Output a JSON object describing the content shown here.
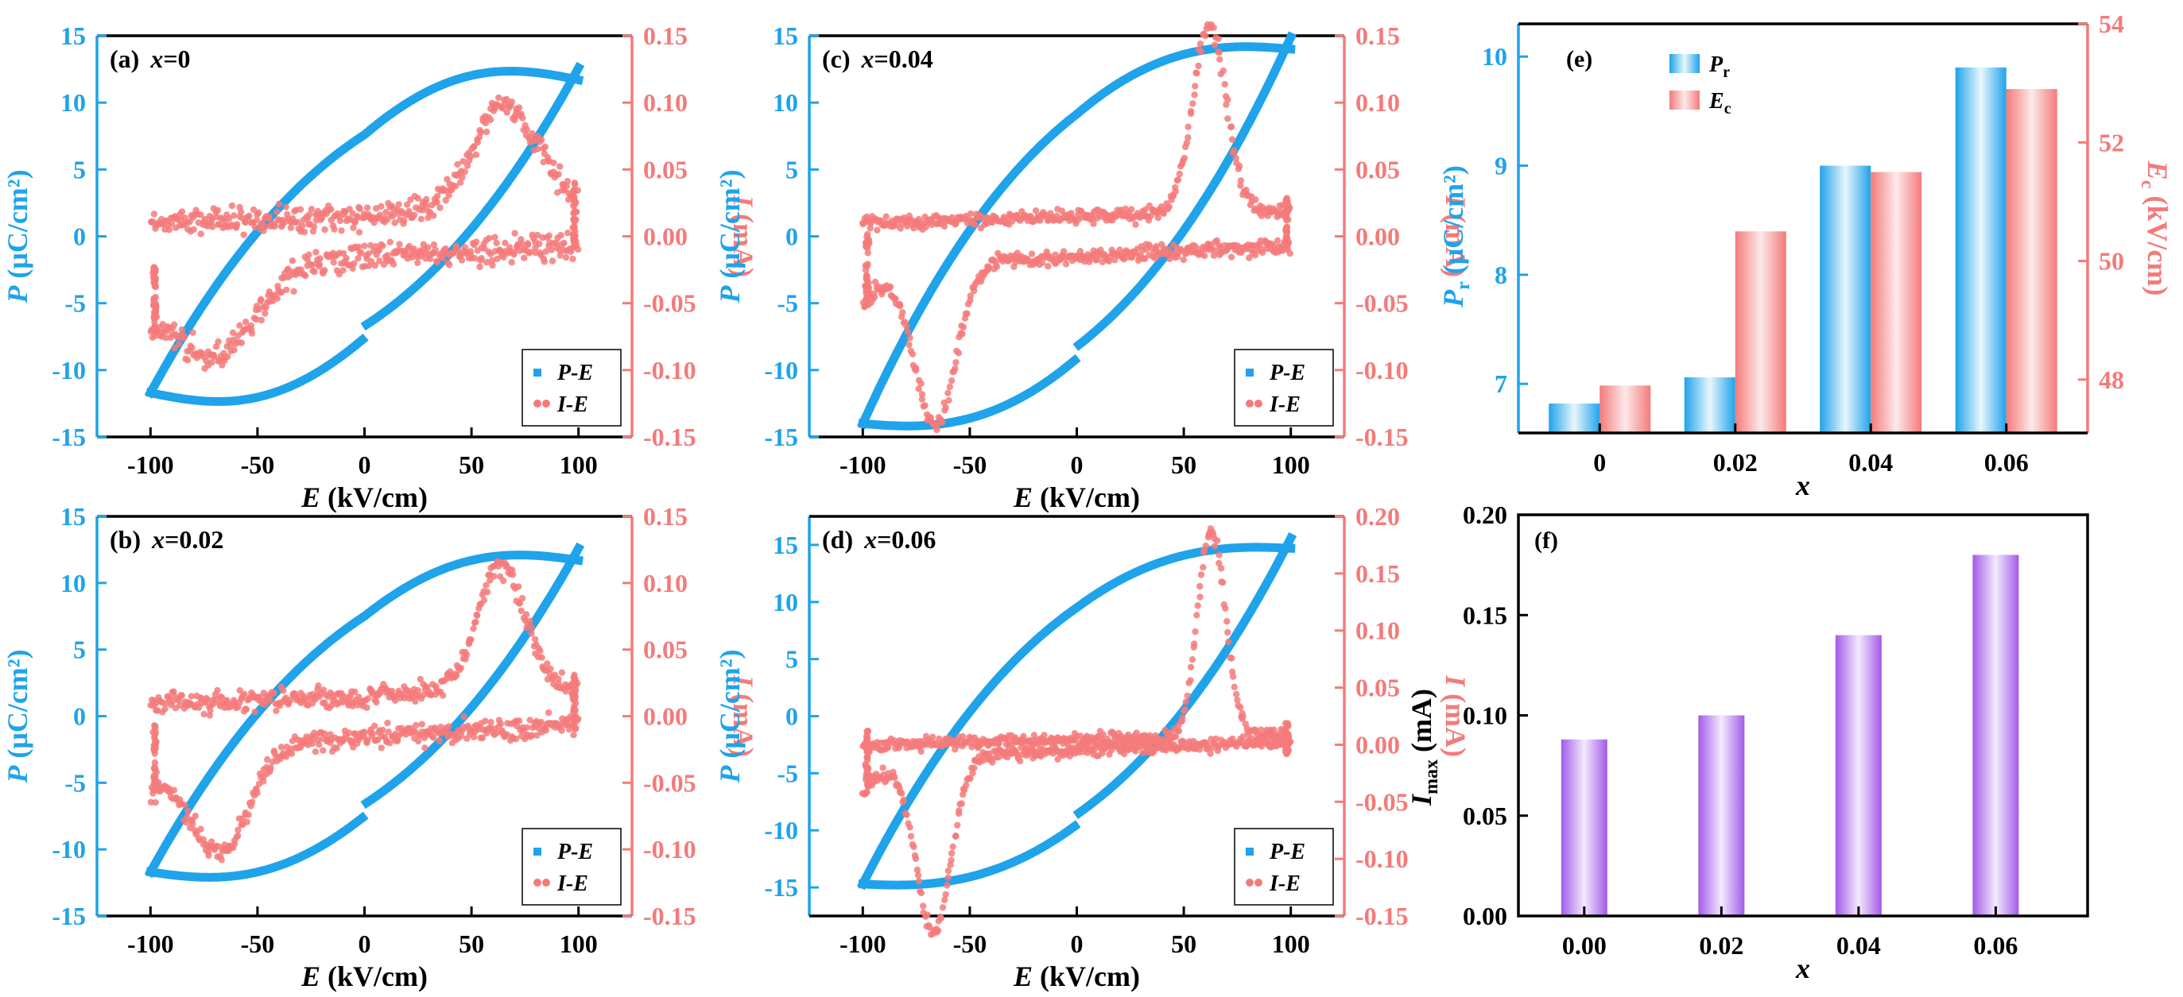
{
  "colors": {
    "blue": "#1fa3ea",
    "red": "#f47a7a",
    "purple": "#a25be8",
    "black": "#000000"
  },
  "chart_data": [
    {
      "id": "a",
      "type": "scatter",
      "panel_label": "(a)",
      "title_var": "x",
      "title_val": "=0",
      "xlabel_main": "E",
      "xlabel_unit": " (kV/cm)",
      "ylabel_left_main": "P",
      "ylabel_left_unit": " (μC/cm²)",
      "ylabel_right_main": "I",
      "ylabel_right_unit": " (mA)",
      "xlim": [
        -125,
        125
      ],
      "xticks": [
        -100,
        -50,
        0,
        50,
        100
      ],
      "y_left_lim": [
        -15,
        15
      ],
      "y_left_ticks": [
        -15,
        -10,
        -5,
        0,
        5,
        10,
        15
      ],
      "y_right_lim": [
        -0.15,
        0.15
      ],
      "y_right_ticks": [
        -0.15,
        -0.1,
        -0.05,
        0.0,
        0.05,
        0.1,
        0.15
      ],
      "y_right_tick_labels": [
        "-0.15",
        "-0.10",
        "-0.05",
        "0.00",
        "0.05",
        "0.10",
        "0.15"
      ],
      "legend": [
        "P-E",
        "I-E"
      ],
      "series": [
        {
          "name": "P-E",
          "Ps": 11.7,
          "Pr": 6.8,
          "Ec": 48,
          "wave": 3.5
        },
        {
          "name": "I-E",
          "Ipeak": 0.08,
          "peak_E": 66,
          "width": 22,
          "base": 0.01
        }
      ]
    },
    {
      "id": "b",
      "type": "scatter",
      "panel_label": "(b)",
      "title_var": "x",
      "title_val": "=0.02",
      "xlabel_main": "E",
      "xlabel_unit": " (kV/cm)",
      "ylabel_left_main": "P",
      "ylabel_left_unit": " (μC/cm²)",
      "ylabel_right_main": "I",
      "ylabel_right_unit": " (mA)",
      "xlim": [
        -125,
        125
      ],
      "xticks": [
        -100,
        -50,
        0,
        50,
        100
      ],
      "y_left_lim": [
        -15,
        15
      ],
      "y_left_ticks": [
        -15,
        -10,
        -5,
        0,
        5,
        10,
        15
      ],
      "y_right_lim": [
        -0.15,
        0.15
      ],
      "y_right_ticks": [
        -0.15,
        -0.1,
        -0.05,
        0.0,
        0.05,
        0.1,
        0.15
      ],
      "y_right_tick_labels": [
        "-0.15",
        "-0.10",
        "-0.05",
        "0.00",
        "0.05",
        "0.10",
        "0.15"
      ],
      "legend": [
        "P-E",
        "I-E"
      ],
      "series": [
        {
          "name": "P-E",
          "Ps": 11.7,
          "Pr": 7.06,
          "Ec": 50.5,
          "wave": 2.5
        },
        {
          "name": "I-E",
          "Ipeak": 0.095,
          "peak_E": 64,
          "width": 16,
          "base": 0.01
        }
      ]
    },
    {
      "id": "c",
      "type": "scatter",
      "panel_label": "(c)",
      "title_var": "x",
      "title_val": "=0.04",
      "xlabel_main": "E",
      "xlabel_unit": " (kV/cm)",
      "ylabel_left_main": "P",
      "ylabel_left_unit": " (μC/cm²)",
      "ylabel_right_main": "I",
      "ylabel_right_unit": " (mA)",
      "xlim": [
        -125,
        125
      ],
      "xticks": [
        -100,
        -50,
        0,
        50,
        100
      ],
      "y_left_lim": [
        -15,
        15
      ],
      "y_left_ticks": [
        -15,
        -10,
        -5,
        0,
        5,
        10,
        15
      ],
      "y_right_lim": [
        -0.15,
        0.15
      ],
      "y_right_ticks": [
        -0.15,
        -0.1,
        -0.05,
        0.0,
        0.05,
        0.1,
        0.15
      ],
      "y_right_tick_labels": [
        "-0.15",
        "-0.10",
        "-0.05",
        "0.00",
        "0.05",
        "0.10",
        "0.15"
      ],
      "legend": [
        "P-E",
        "I-E"
      ],
      "series": [
        {
          "name": "P-E",
          "Ps": 14.0,
          "Pr": 9.0,
          "Ec": 51.5,
          "wave": 1.5
        },
        {
          "name": "I-E",
          "Ipeak": 0.14,
          "peak_E": 62,
          "width": 11,
          "base": 0.01
        }
      ]
    },
    {
      "id": "d",
      "type": "scatter",
      "panel_label": "(d)",
      "title_var": "x",
      "title_val": "=0.06",
      "xlabel_main": "E",
      "xlabel_unit": " (kV/cm)",
      "ylabel_left_main": "P",
      "ylabel_left_unit": " (μC/cm²)",
      "ylabel_right_main": "I",
      "ylabel_right_unit": " (mA)",
      "xlim": [
        -125,
        125
      ],
      "xticks": [
        -100,
        -50,
        0,
        50,
        100
      ],
      "y_left_lim": [
        -17.5,
        17.5
      ],
      "y_left_ticks": [
        -15,
        -10,
        -5,
        0,
        5,
        10,
        15
      ],
      "y_right_lim": [
        -0.15,
        0.2
      ],
      "y_right_ticks": [
        -0.15,
        -0.1,
        -0.05,
        0.0,
        0.05,
        0.1,
        0.15,
        0.2
      ],
      "y_right_tick_labels": [
        "-0.15",
        "-0.10",
        "-0.05",
        "0.00",
        "0.05",
        "0.10",
        "0.15",
        "0.20"
      ],
      "legend": [
        "P-E",
        "I-E"
      ],
      "series": [
        {
          "name": "P-E",
          "Ps": 14.7,
          "Pr": 9.9,
          "Ec": 53,
          "wave": 1.0
        },
        {
          "name": "I-E",
          "Ipeak": 0.18,
          "peak_E": 63,
          "width": 9,
          "base": 0.0
        }
      ]
    },
    {
      "id": "e",
      "type": "bar",
      "panel_label": "(e)",
      "categories": [
        "0",
        "0.02",
        "0.04",
        "0.06"
      ],
      "xlabel": "x",
      "ylabel_left_main": "P",
      "ylabel_left_sub": "r",
      "ylabel_left_unit": " (μC/cm²)",
      "ylabel_right_main": "E",
      "ylabel_right_sub": "c",
      "ylabel_right_unit": " (kV/cm)",
      "y_left_lim": [
        6.55,
        10.3
      ],
      "y_left_ticks": [
        7,
        8,
        9,
        10
      ],
      "y_right_lim": [
        47.1,
        54
      ],
      "y_right_ticks": [
        48,
        50,
        52,
        54
      ],
      "legend_main": [
        "P",
        "E"
      ],
      "legend_sub": [
        "r",
        "c"
      ],
      "series": [
        {
          "name": "Pr",
          "axis": "left",
          "values": [
            6.82,
            7.06,
            9.0,
            9.9
          ]
        },
        {
          "name": "Ec",
          "axis": "right",
          "values": [
            47.9,
            50.5,
            51.5,
            52.9
          ]
        }
      ]
    },
    {
      "id": "f",
      "type": "bar",
      "panel_label": "(f)",
      "categories": [
        "0.00",
        "0.02",
        "0.04",
        "0.06"
      ],
      "xlabel": "x",
      "ylabel_main": "I",
      "ylabel_sub": "max",
      "ylabel_unit": " (mA)",
      "ylim": [
        0,
        0.2
      ],
      "yticks": [
        0,
        0.05,
        0.1,
        0.15,
        0.2
      ],
      "ytick_labels": [
        "0.00",
        "0.05",
        "0.10",
        "0.15",
        "0.20"
      ],
      "series": [
        {
          "name": "Imax",
          "values": [
            0.088,
            0.1,
            0.14,
            0.18
          ]
        }
      ]
    }
  ]
}
